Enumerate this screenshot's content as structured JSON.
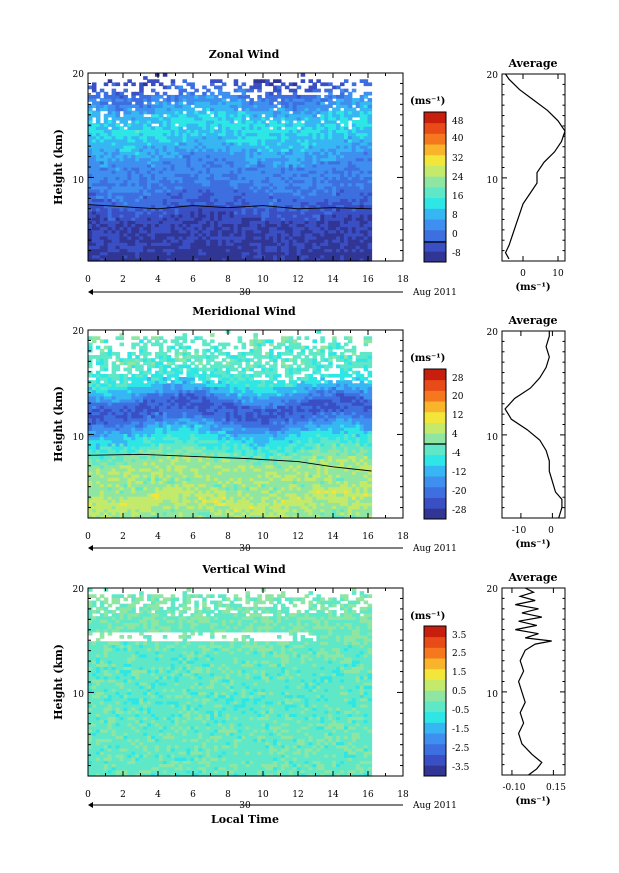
{
  "chart_data": [
    {
      "type": "heatmap",
      "title": "Zonal Wind",
      "ylabel": "Height (km)",
      "xlabel": "",
      "ylim": [
        2,
        20
      ],
      "xlim": [
        0,
        18
      ],
      "y_ticks": [
        "10",
        "20"
      ],
      "x_ticks": [
        "0",
        "2",
        "4",
        "6",
        "8",
        "10",
        "12",
        "14",
        "16",
        "18"
      ],
      "date_day": "30",
      "date_label": "Aug 2011",
      "colorbar_unit": "(ms⁻¹)",
      "colorbar_range": [
        -8,
        52
      ],
      "colorbar_ticks": [
        "48",
        "40",
        "32",
        "24",
        "16",
        "8",
        "0",
        "-8"
      ],
      "contour_level": 0,
      "average": {
        "title": "Average",
        "unit": "(ms⁻¹)",
        "xlim": [
          -6,
          12
        ],
        "x_ticks": [
          "0",
          "10"
        ],
        "y_ticks": [
          "10",
          "20"
        ],
        "profile": [
          {
            "h": 2.2,
            "v": -4
          },
          {
            "h": 2.8,
            "v": -5
          },
          {
            "h": 3.5,
            "v": -4
          },
          {
            "h": 4.5,
            "v": -3
          },
          {
            "h": 5.5,
            "v": -2
          },
          {
            "h": 6.5,
            "v": -1
          },
          {
            "h": 7.5,
            "v": 0
          },
          {
            "h": 8.5,
            "v": 2
          },
          {
            "h": 9.5,
            "v": 4
          },
          {
            "h": 10.5,
            "v": 4
          },
          {
            "h": 11.5,
            "v": 6
          },
          {
            "h": 12.5,
            "v": 9
          },
          {
            "h": 13.5,
            "v": 11
          },
          {
            "h": 14.5,
            "v": 12
          },
          {
            "h": 15.5,
            "v": 10
          },
          {
            "h": 16.5,
            "v": 7
          },
          {
            "h": 17.5,
            "v": 3
          },
          {
            "h": 18.5,
            "v": -1
          },
          {
            "h": 19.5,
            "v": -4
          },
          {
            "h": 20,
            "v": -5
          }
        ]
      },
      "field": {
        "t_end": 16.2,
        "data_top": 19.4,
        "field_top": 20,
        "noise": 3,
        "profile": [
          {
            "h": 2,
            "v": -6
          },
          {
            "h": 4,
            "v": -4
          },
          {
            "h": 6,
            "v": -3
          },
          {
            "h": 7,
            "v": 0
          },
          {
            "h": 8,
            "v": 2
          },
          {
            "h": 9,
            "v": 4
          },
          {
            "h": 10,
            "v": 6
          },
          {
            "h": 11,
            "v": 6
          },
          {
            "h": 12,
            "v": 8
          },
          {
            "h": 13,
            "v": 11
          },
          {
            "h": 14,
            "v": 13
          },
          {
            "h": 15,
            "v": 15
          },
          {
            "h": 16,
            "v": 12
          },
          {
            "h": 17,
            "v": 8
          },
          {
            "h": 18,
            "v": 4
          },
          {
            "h": 19,
            "v": 0
          },
          {
            "h": 20,
            "v": -4
          }
        ],
        "gaps": [
          {
            "t0": 0,
            "t1": 18,
            "h0": 17.8,
            "h1": 20,
            "p": 0.6
          },
          {
            "t0": 0,
            "t1": 18,
            "h0": 14.5,
            "h1": 17.8,
            "p": 0.12
          }
        ],
        "contour": [
          [
            0,
            7.4
          ],
          [
            2,
            7.2
          ],
          [
            4,
            7.0
          ],
          [
            6,
            7.3
          ],
          [
            8,
            7.1
          ],
          [
            10,
            7.3
          ],
          [
            12,
            7.0
          ],
          [
            14,
            7.1
          ],
          [
            16.2,
            7.0
          ]
        ]
      }
    },
    {
      "type": "heatmap",
      "title": "Meridional Wind",
      "ylabel": "Height (km)",
      "xlabel": "",
      "ylim": [
        2,
        20
      ],
      "xlim": [
        0,
        18
      ],
      "y_ticks": [
        "10",
        "20"
      ],
      "x_ticks": [
        "0",
        "2",
        "4",
        "6",
        "8",
        "10",
        "12",
        "14",
        "16",
        "18"
      ],
      "date_day": "30",
      "date_label": "Aug 2011",
      "colorbar_unit": "(ms⁻¹)",
      "colorbar_range": [
        -28,
        28
      ],
      "colorbar_ticks": [
        "28",
        "20",
        "12",
        "4",
        "-4",
        "-12",
        "-20",
        "-28"
      ],
      "contour_level": 0,
      "average": {
        "title": "Average",
        "unit": "(ms⁻¹)",
        "xlim": [
          -16,
          4
        ],
        "x_ticks": [
          "-10",
          "0"
        ],
        "y_ticks": [
          "10",
          "20"
        ],
        "profile": [
          {
            "h": 2,
            "v": 2
          },
          {
            "h": 3,
            "v": 3
          },
          {
            "h": 3.8,
            "v": 3
          },
          {
            "h": 4.5,
            "v": 1
          },
          {
            "h": 5.5,
            "v": 0
          },
          {
            "h": 6.5,
            "v": -1
          },
          {
            "h": 7.5,
            "v": -1
          },
          {
            "h": 8.5,
            "v": -2
          },
          {
            "h": 9.5,
            "v": -4
          },
          {
            "h": 10.5,
            "v": -8
          },
          {
            "h": 11.5,
            "v": -13
          },
          {
            "h": 12.5,
            "v": -15
          },
          {
            "h": 13.5,
            "v": -12
          },
          {
            "h": 14.5,
            "v": -7
          },
          {
            "h": 15.5,
            "v": -4
          },
          {
            "h": 16.5,
            "v": -2
          },
          {
            "h": 17.5,
            "v": -1
          },
          {
            "h": 18.5,
            "v": -2
          },
          {
            "h": 19.5,
            "v": -1
          },
          {
            "h": 20,
            "v": -1
          }
        ]
      },
      "field": {
        "t_end": 16.2,
        "data_top": 19.4,
        "field_top": 20,
        "noise": 3,
        "profile": [
          {
            "h": 2,
            "v": 2
          },
          {
            "h": 3,
            "v": 5
          },
          {
            "h": 4,
            "v": 6
          },
          {
            "h": 5,
            "v": 2
          },
          {
            "h": 6,
            "v": 3
          },
          {
            "h": 7,
            "v": 4
          },
          {
            "h": 8,
            "v": 0
          },
          {
            "h": 9,
            "v": -4
          },
          {
            "h": 10,
            "v": -8
          },
          {
            "h": 11,
            "v": -14
          },
          {
            "h": 12,
            "v": -20
          },
          {
            "h": 13,
            "v": -20
          },
          {
            "h": 14,
            "v": -12
          },
          {
            "h": 15,
            "v": -6
          },
          {
            "h": 16,
            "v": -3
          },
          {
            "h": 17,
            "v": -2
          },
          {
            "h": 18,
            "v": -3
          },
          {
            "h": 19,
            "v": -2
          },
          {
            "h": 20,
            "v": -1
          }
        ],
        "gaps": [
          {
            "t0": 0,
            "t1": 18,
            "h0": 18.0,
            "h1": 20,
            "p": 0.55
          },
          {
            "t0": 0,
            "t1": 18,
            "h0": 14.8,
            "h1": 18.0,
            "p": 0.3
          }
        ],
        "contour": [
          [
            0,
            8.0
          ],
          [
            3,
            8.1
          ],
          [
            6,
            7.9
          ],
          [
            9,
            7.7
          ],
          [
            12,
            7.4
          ],
          [
            14,
            6.9
          ],
          [
            16.2,
            6.5
          ]
        ]
      }
    },
    {
      "type": "heatmap",
      "title": "Vertical Wind",
      "ylabel": "Height (km)",
      "xlabel": "Local Time",
      "ylim": [
        2,
        20
      ],
      "xlim": [
        0,
        18
      ],
      "y_ticks": [
        "10",
        "20"
      ],
      "x_ticks": [
        "0",
        "2",
        "4",
        "6",
        "8",
        "10",
        "12",
        "14",
        "16",
        "18"
      ],
      "date_day": "30",
      "date_label": "Aug 2011",
      "colorbar_unit": "(ms⁻¹)",
      "colorbar_range": [
        -4,
        4
      ],
      "colorbar_ticks": [
        "3.5",
        "2.5",
        "1.5",
        "0.5",
        "-0.5",
        "-1.5",
        "-2.5",
        "-3.5"
      ],
      "average": {
        "title": "Average",
        "unit": "(ms⁻¹)",
        "xlim": [
          -0.16,
          0.22
        ],
        "x_ticks": [
          "-0.10",
          "0.15"
        ],
        "y_ticks": [
          "10",
          "20"
        ],
        "profile": [
          {
            "h": 2,
            "v": 0.0
          },
          {
            "h": 2.6,
            "v": 0.05
          },
          {
            "h": 3.2,
            "v": 0.08
          },
          {
            "h": 4.0,
            "v": 0.02
          },
          {
            "h": 5.0,
            "v": -0.04
          },
          {
            "h": 6.0,
            "v": -0.06
          },
          {
            "h": 7.0,
            "v": -0.03
          },
          {
            "h": 8.0,
            "v": -0.05
          },
          {
            "h": 9.0,
            "v": -0.02
          },
          {
            "h": 10.0,
            "v": -0.04
          },
          {
            "h": 11.0,
            "v": -0.06
          },
          {
            "h": 12.0,
            "v": -0.03
          },
          {
            "h": 13.0,
            "v": -0.05
          },
          {
            "h": 14.0,
            "v": -0.02
          },
          {
            "h": 14.6,
            "v": 0.04
          },
          {
            "h": 14.9,
            "v": 0.14
          },
          {
            "h": 15.2,
            "v": -0.02
          },
          {
            "h": 15.6,
            "v": 0.06
          },
          {
            "h": 16.0,
            "v": -0.08
          },
          {
            "h": 16.4,
            "v": 0.05
          },
          {
            "h": 16.8,
            "v": -0.06
          },
          {
            "h": 17.2,
            "v": 0.08
          },
          {
            "h": 17.6,
            "v": -0.04
          },
          {
            "h": 18.0,
            "v": 0.06
          },
          {
            "h": 18.4,
            "v": -0.08
          },
          {
            "h": 18.8,
            "v": 0.04
          },
          {
            "h": 19.2,
            "v": -0.05
          },
          {
            "h": 19.6,
            "v": 0.03
          },
          {
            "h": 20,
            "v": -0.02
          }
        ]
      },
      "field": {
        "t_end": 16.2,
        "data_top": 19.4,
        "field_top": 20,
        "noise": 0.45,
        "profile": [
          {
            "h": 2,
            "v": -0.2
          },
          {
            "h": 6,
            "v": -0.2
          },
          {
            "h": 10,
            "v": -0.3
          },
          {
            "h": 14,
            "v": -0.2
          },
          {
            "h": 17,
            "v": 0.0
          },
          {
            "h": 20,
            "v": 0.1
          }
        ],
        "gaps": [
          {
            "t0": 0,
            "t1": 18,
            "h0": 18.3,
            "h1": 20,
            "p": 0.45
          },
          {
            "t0": 0,
            "t1": 18,
            "h0": 17.3,
            "h1": 18.3,
            "p": 0.25
          },
          {
            "t0": 0,
            "t1": 13,
            "h0": 15.0,
            "h1": 15.7,
            "p": 0.75
          }
        ]
      }
    }
  ],
  "colormap": [
    "#313695",
    "#3a4fc4",
    "#3d6fe0",
    "#3f8ff0",
    "#36b6f2",
    "#2ee6e6",
    "#5fe8c8",
    "#8fe6a2",
    "#c3ea6a",
    "#f2e63a",
    "#f8b52c",
    "#f5781e",
    "#e84a18",
    "#c81e0e"
  ]
}
